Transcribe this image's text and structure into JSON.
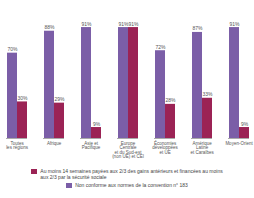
{
  "chart_data": {
    "type": "bar",
    "categories": [
      "Toutes\nles régions",
      "Afrique",
      "Asie et\nPacifique",
      "Europe\nCentrale\net du Sud-est\n(non UE) et CEI",
      "Économies\ndéveloppées\net UE",
      "Amérique\nLatine\net Caraïbes",
      "Moyen-Orient"
    ],
    "series": [
      {
        "name": "Non conforme aux normes de la convention n° 183",
        "color": "#7b5ea7",
        "values": [
          70,
          88,
          91,
          91,
          72,
          87,
          91
        ],
        "value_labels": [
          "70%",
          "88%",
          "91%",
          "91%",
          "72%",
          "87%",
          "91%"
        ]
      },
      {
        "name": "Au moins 14 semaines payées aux 2/3 des gains antérieurs et financées au moins\naux 2/3 par la sécurité sociale",
        "color": "#9b2355",
        "values": [
          30,
          29,
          9,
          91,
          28,
          33,
          9
        ],
        "value_labels": [
          "30%",
          "29%",
          "9%",
          "91%",
          "28%",
          "33%",
          "9%"
        ]
      }
    ],
    "ylim": [
      0,
      105
    ],
    "data_labels": true,
    "tick_labels": "x",
    "legend": "bottom"
  }
}
